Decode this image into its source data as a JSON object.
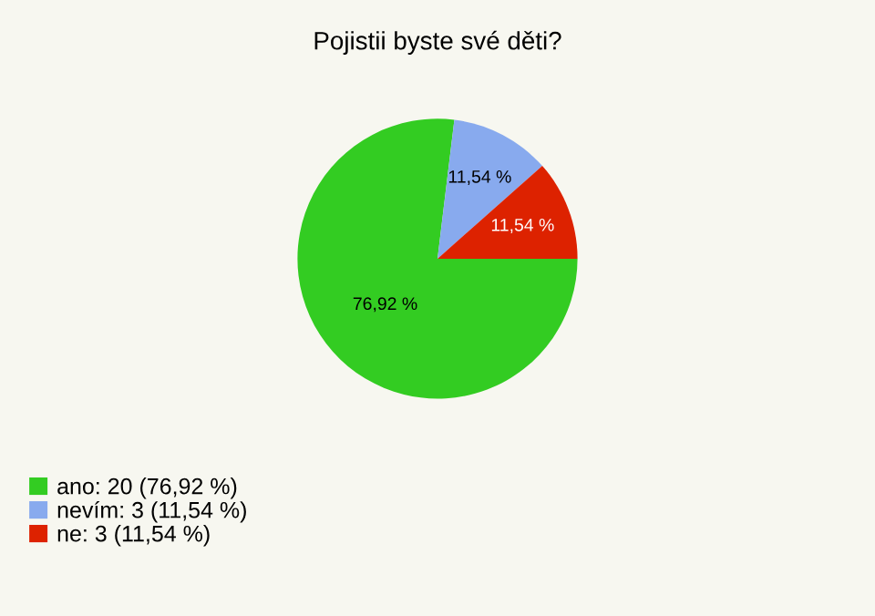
{
  "chart_data": {
    "type": "pie",
    "title": "Pojistii byste své děti?",
    "categories": [
      "ano: 20 (76,92 %)",
      "nevím: 3 (11,54 %)",
      "ne: 3 (11,54 %)"
    ],
    "values": [
      76.92,
      11.54,
      11.54
    ],
    "value_labels": [
      "76,92 %",
      "11,54 %",
      "11,54 %"
    ],
    "colors": [
      "#33cc22",
      "#88aaee",
      "#dd2200"
    ],
    "legend": "bottom left"
  }
}
